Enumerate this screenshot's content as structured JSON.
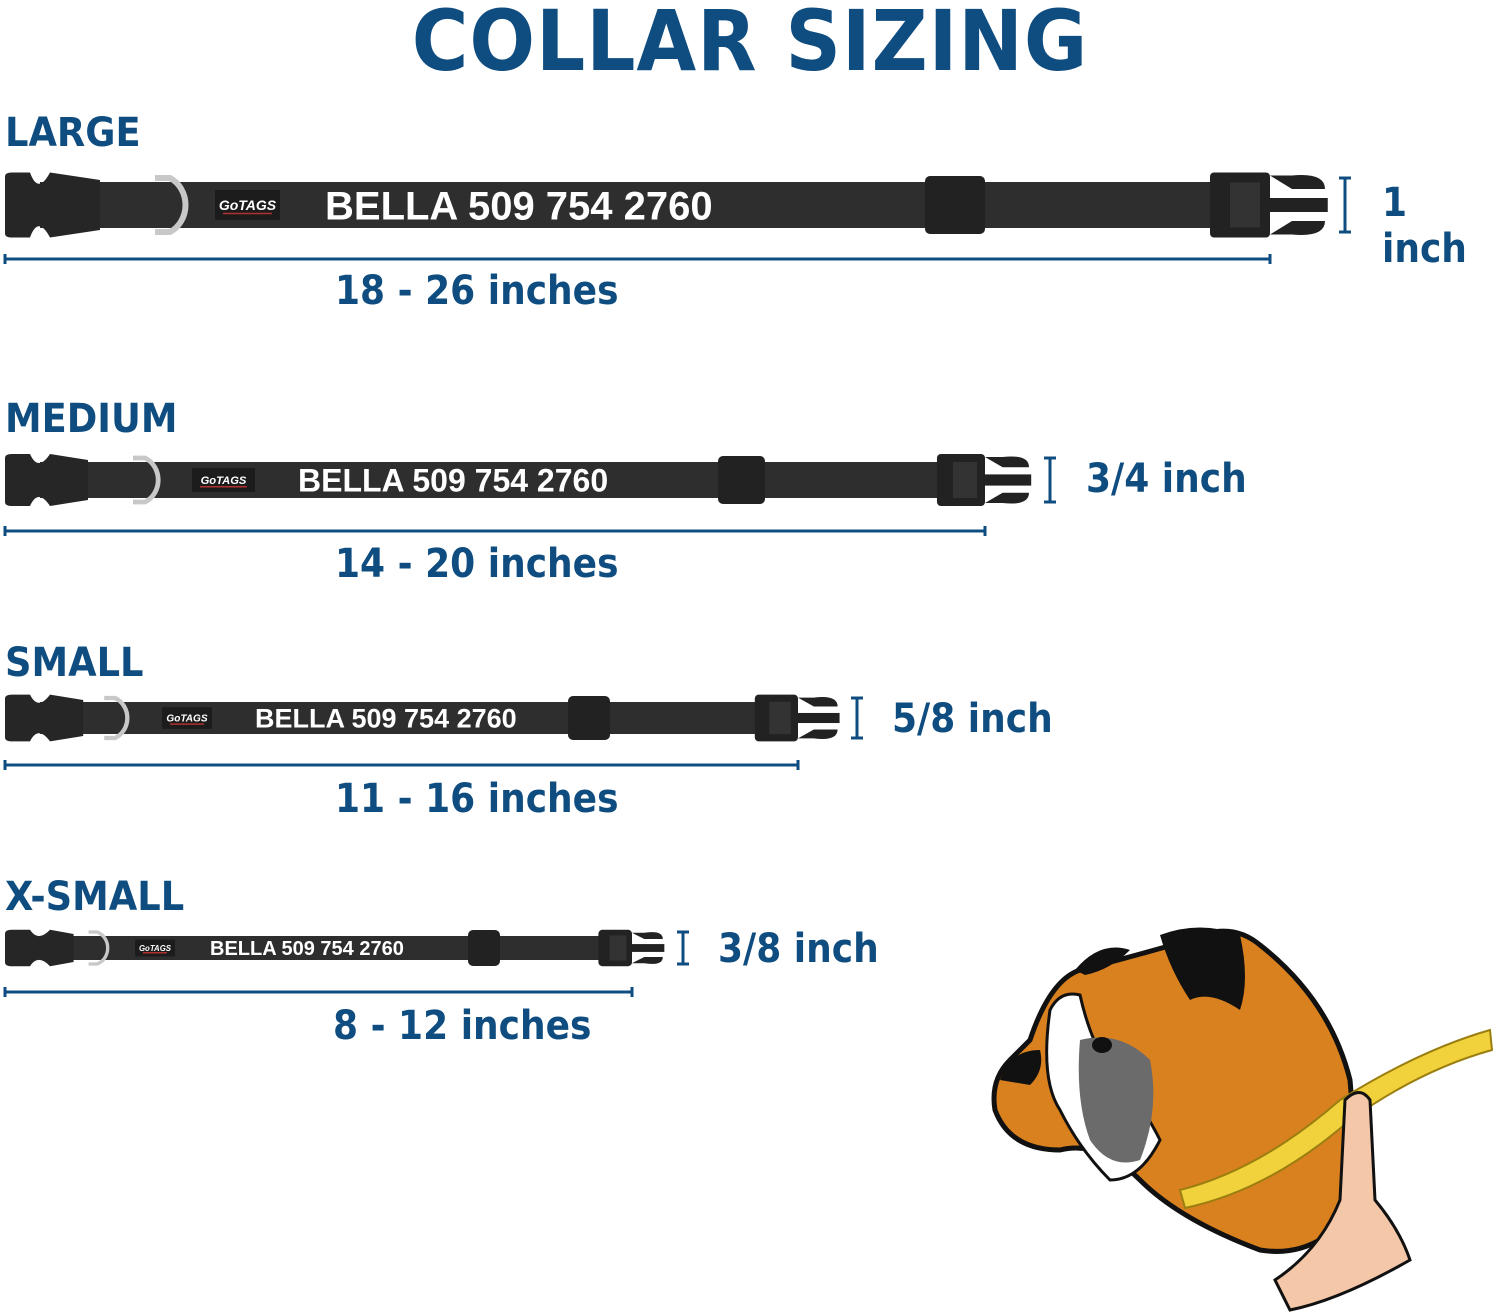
{
  "title": "COLLAR SIZING",
  "colors": {
    "accent": "#0f4d80",
    "strap": "#2e2e2e",
    "ring": "#c8c8c8",
    "dog_fur": "#d9801f",
    "tape": "#f2d23c"
  },
  "collar_text": "BELLA 509 754 2760",
  "logo": "GoTAGS",
  "sizes": [
    {
      "label": "LARGE",
      "range": "18 - 26 inches",
      "width": "1 inch"
    },
    {
      "label": "MEDIUM",
      "range": "14 - 20 inches",
      "width": "3/4 inch"
    },
    {
      "label": "SMALL",
      "range": "11 - 16 inches",
      "width": "5/8 inch"
    },
    {
      "label": "X-SMALL",
      "range": "8 - 12 inches",
      "width": "3/8 inch"
    }
  ]
}
